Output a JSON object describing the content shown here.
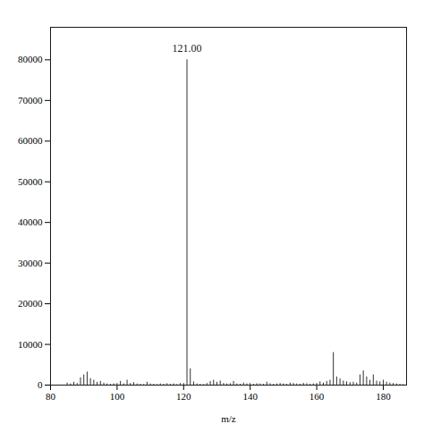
{
  "chart_data": {
    "type": "stem",
    "xlabel": "m/z",
    "color": "#1a1a1a",
    "xlim": [
      80,
      187
    ],
    "ylim": [
      0,
      88000
    ],
    "xticks": [
      80,
      100,
      120,
      140,
      160,
      180
    ],
    "yticks": [
      0,
      10000,
      20000,
      30000,
      40000,
      50000,
      60000,
      70000,
      80000
    ],
    "grid": false,
    "annotations": [
      {
        "text": "121.00",
        "x": 121.0,
        "y": 82000
      }
    ],
    "x": [
      85,
      86,
      87,
      88,
      89,
      90,
      91,
      92,
      93,
      94,
      95,
      96,
      97,
      98,
      99,
      100,
      101,
      102,
      103,
      104,
      105,
      106,
      107,
      108,
      109,
      110,
      111,
      112,
      113,
      114,
      115,
      116,
      117,
      118,
      119,
      120,
      121,
      122,
      123,
      124,
      125,
      126,
      127,
      128,
      129,
      130,
      131,
      132,
      133,
      134,
      135,
      136,
      137,
      138,
      139,
      140,
      141,
      142,
      143,
      144,
      145,
      146,
      147,
      148,
      149,
      150,
      151,
      152,
      153,
      154,
      155,
      156,
      157,
      158,
      159,
      160,
      161,
      162,
      163,
      164,
      165,
      166,
      167,
      168,
      169,
      170,
      171,
      172,
      173,
      174,
      175,
      176,
      177,
      178,
      179,
      180,
      181,
      182,
      183,
      184,
      185,
      186
    ],
    "values": [
      500,
      300,
      700,
      400,
      1800,
      2500,
      3200,
      1600,
      1200,
      700,
      900,
      500,
      300,
      200,
      300,
      400,
      900,
      300,
      1200,
      400,
      600,
      300,
      200,
      150,
      700,
      300,
      200,
      150,
      300,
      200,
      350,
      200,
      300,
      150,
      400,
      400,
      80000,
      4000,
      800,
      300,
      200,
      150,
      400,
      900,
      1200,
      700,
      1000,
      400,
      300,
      350,
      900,
      300,
      200,
      500,
      300,
      400,
      200,
      350,
      300,
      200,
      700,
      350,
      200,
      300,
      400,
      300,
      200,
      500,
      400,
      300,
      200,
      450,
      350,
      200,
      300,
      400,
      800,
      500,
      900,
      1200,
      8000,
      2000,
      1500,
      1000,
      800,
      600,
      700,
      500,
      2500,
      3500,
      2000,
      1200,
      2500,
      1000,
      800,
      1200,
      700,
      500,
      400,
      300,
      200,
      150
    ]
  }
}
